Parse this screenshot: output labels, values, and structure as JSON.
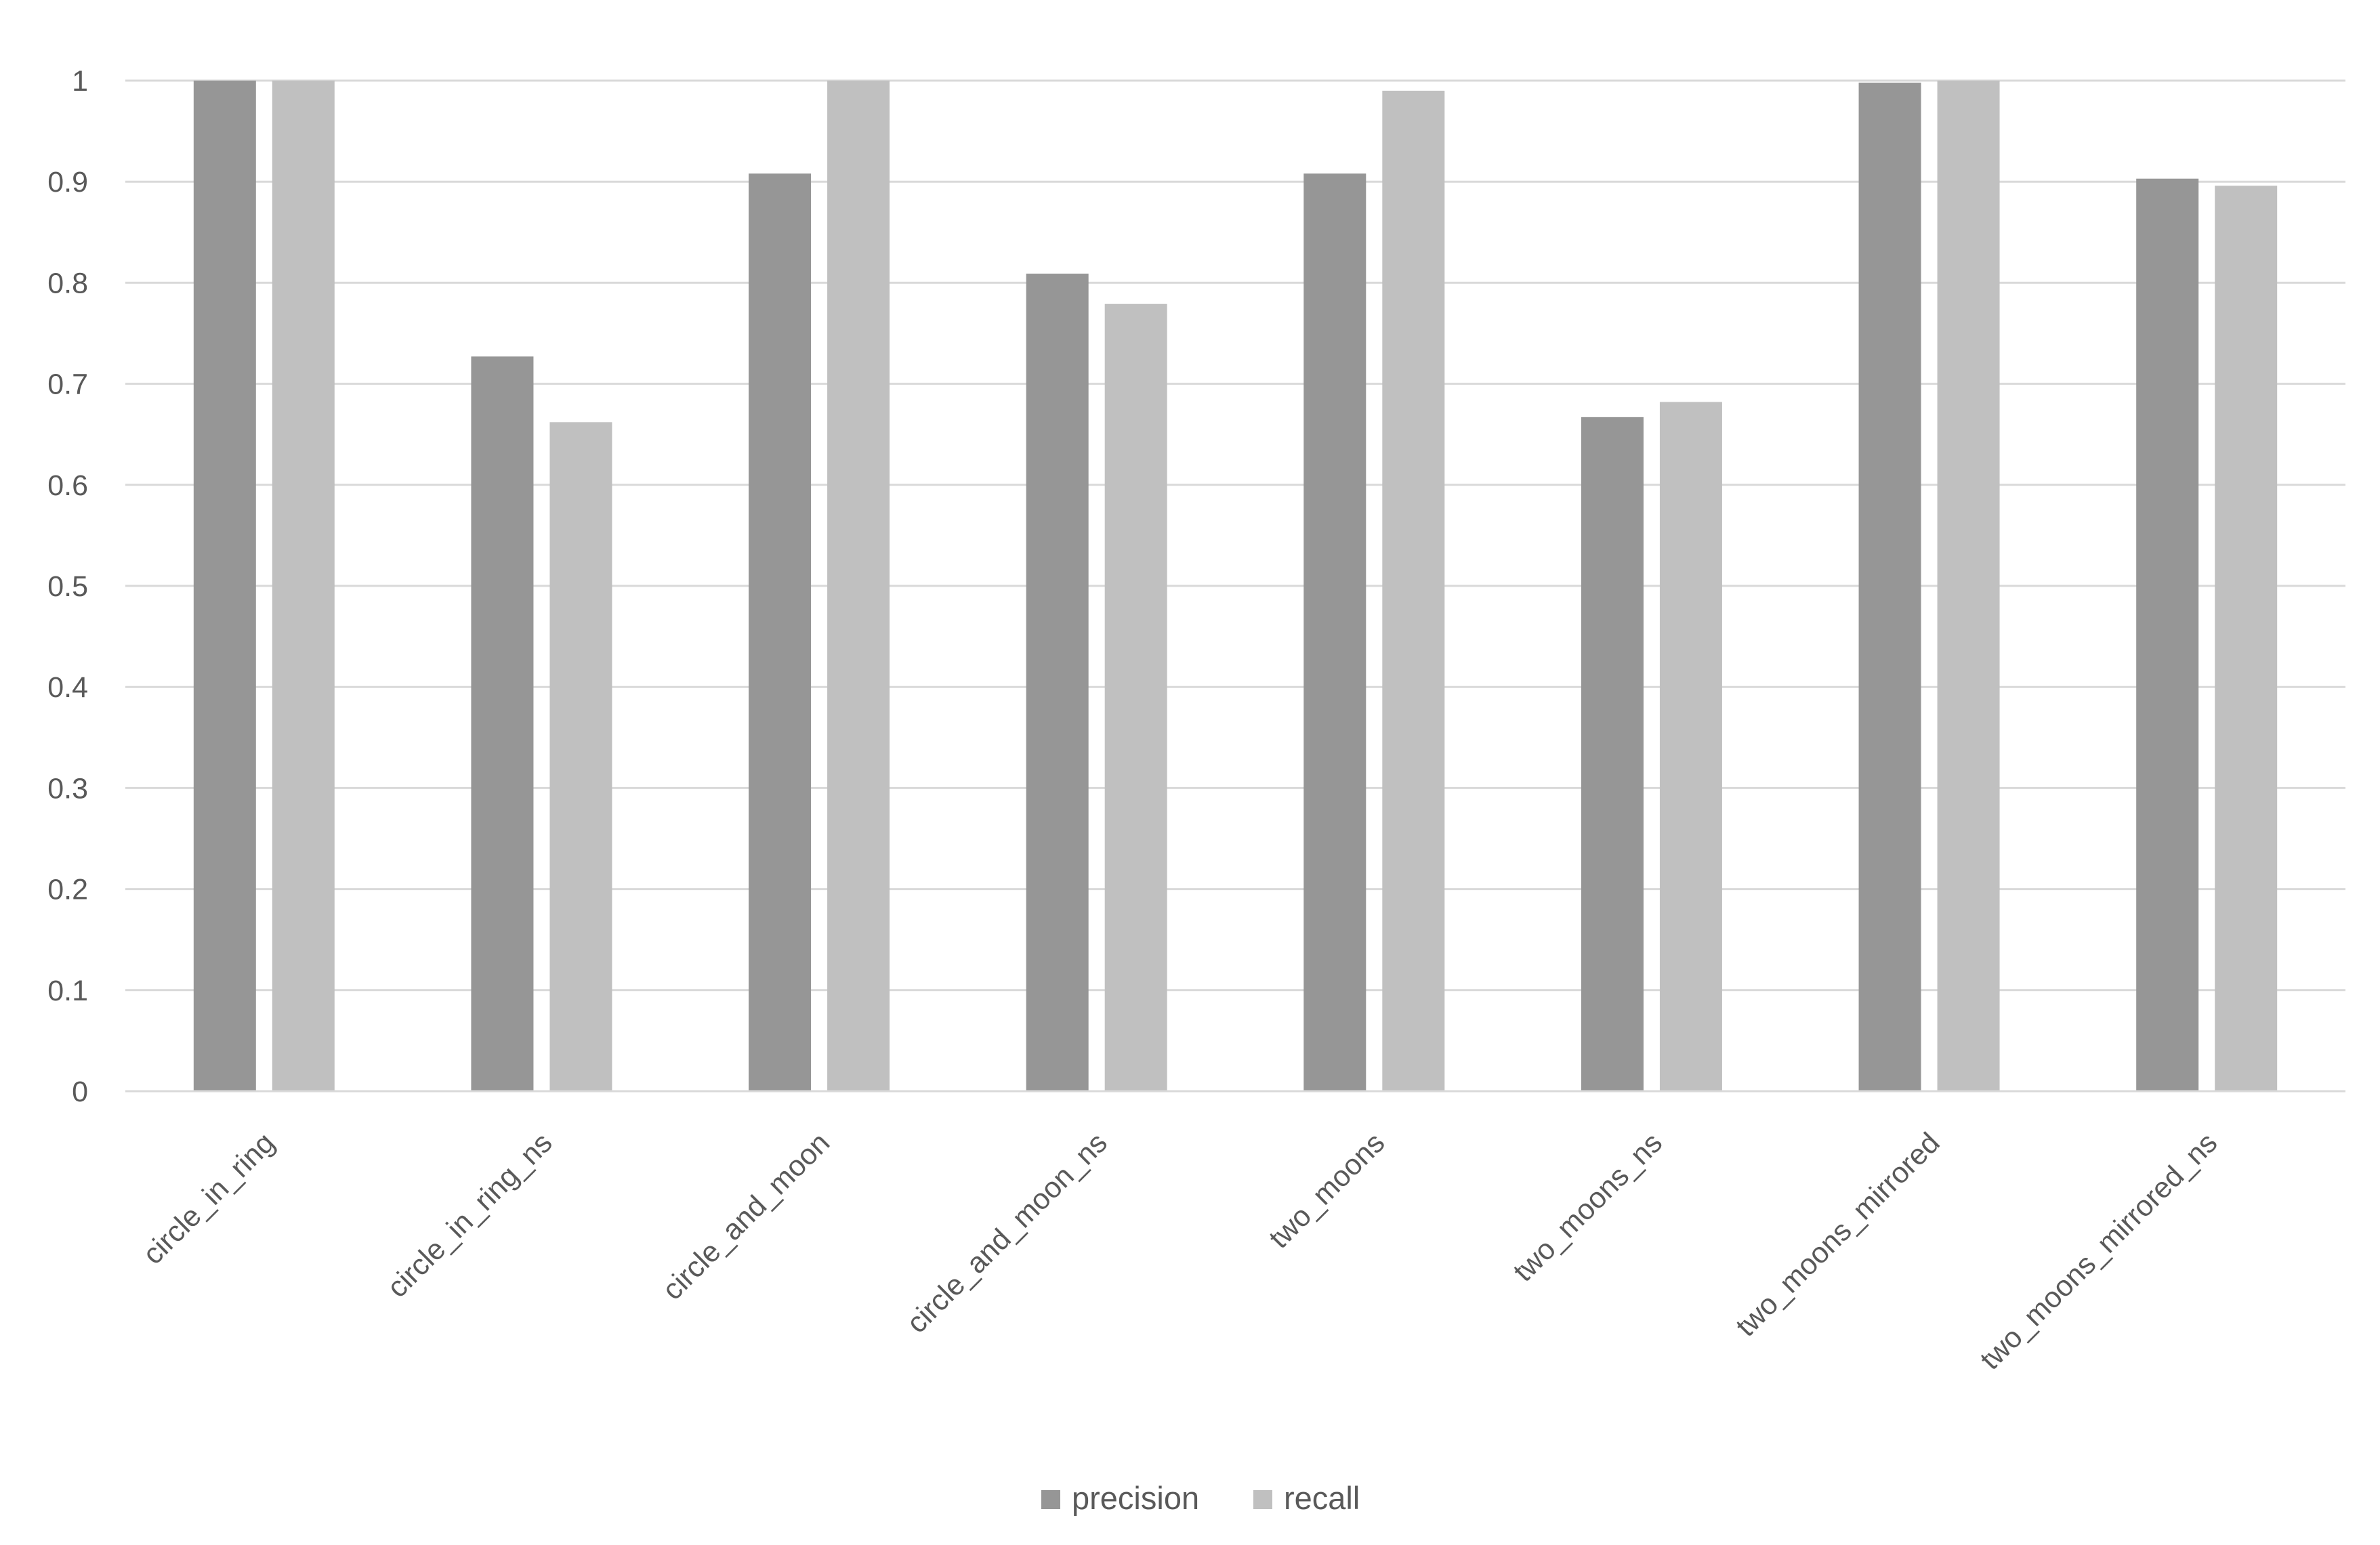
{
  "chart_data": {
    "type": "bar",
    "title": "",
    "xlabel": "",
    "ylabel": "",
    "categories": [
      "circle_in_ring",
      "circle_in_ring_ns",
      "circle_and_moon",
      "circle_and_moon_ns",
      "two_moons",
      "two_moons_ns",
      "two_moons_mirrored",
      "two_moons_mirrored_ns"
    ],
    "series": [
      {
        "name": "precision",
        "color": "#969696",
        "values": [
          1.0,
          0.727,
          0.908,
          0.809,
          0.908,
          0.667,
          0.998,
          0.903
        ]
      },
      {
        "name": "recall",
        "color": "#c0c0c0",
        "values": [
          1.0,
          0.662,
          1.0,
          0.779,
          0.99,
          0.682,
          1.0,
          0.896
        ]
      }
    ],
    "ylim": [
      0,
      1
    ],
    "yticks": [
      "0",
      "0.1",
      "0.2",
      "0.3",
      "0.4",
      "0.5",
      "0.6",
      "0.7",
      "0.8",
      "0.9",
      "1"
    ],
    "grid": true,
    "legend_position": "bottom"
  }
}
